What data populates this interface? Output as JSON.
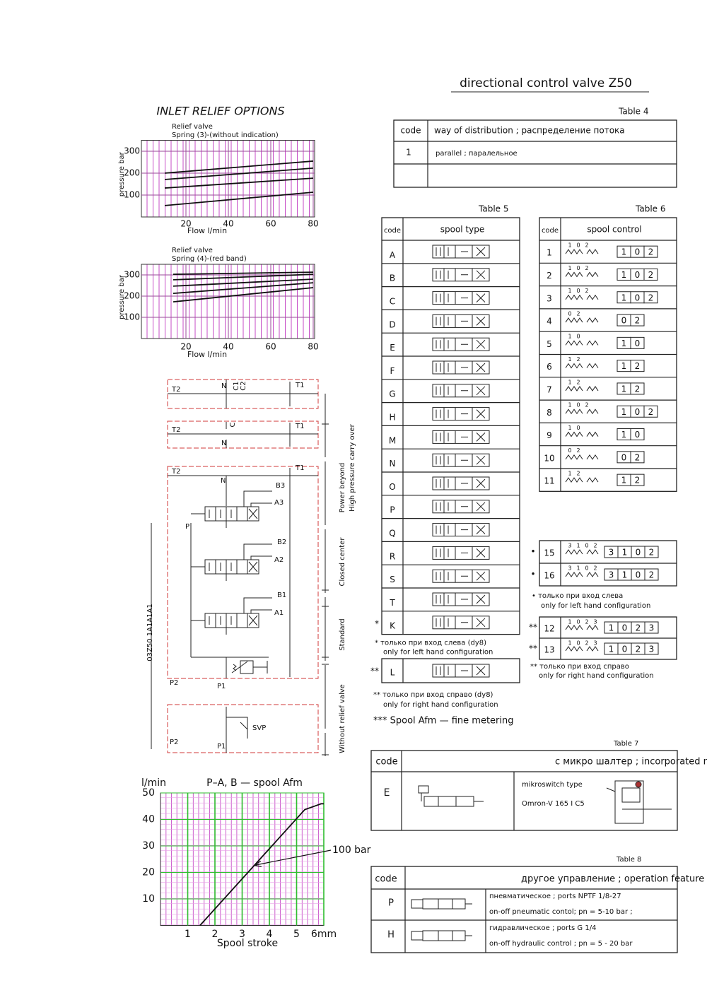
{
  "header": {
    "title": "directional control valve Z50"
  },
  "inlet_relief_title": "INLET RELIEF OPTIONS",
  "chart_data": [
    {
      "type": "line",
      "title": "Relief valve",
      "subtitle": "Spring (3)-(without indication)",
      "x_label": "Flow l/min",
      "y_label": "pressure bar",
      "xlim": [
        0,
        80
      ],
      "ylim": [
        0,
        350
      ],
      "xticks": [
        20,
        40,
        60,
        80
      ],
      "yticks": [
        100,
        200,
        300
      ],
      "x": [
        10,
        80
      ],
      "color": "#111111",
      "grid_color": "#9a4a9a",
      "series": [
        {
          "values": [
            200,
            255
          ]
        },
        {
          "values": [
            171,
            223
          ]
        },
        {
          "values": [
            132,
            177
          ]
        },
        {
          "values": [
            52,
            113
          ]
        }
      ]
    },
    {
      "type": "line",
      "title": "Relief valve",
      "subtitle": "Spring (4)-(red band)",
      "x_label": "Flow l/min",
      "y_label": "pressure bar",
      "xlim": [
        0,
        80
      ],
      "ylim": [
        0,
        350
      ],
      "xticks": [
        20,
        40,
        60,
        80
      ],
      "yticks": [
        100,
        200,
        300
      ],
      "x": [
        14,
        80
      ],
      "color": "#111111",
      "grid_color": "#9a4a9a",
      "series": [
        {
          "values": [
            303,
            313
          ]
        },
        {
          "values": [
            277,
            303
          ]
        },
        {
          "values": [
            247,
            280
          ]
        },
        {
          "values": [
            213,
            263
          ]
        },
        {
          "values": [
            173,
            240
          ]
        }
      ]
    },
    {
      "type": "line",
      "title": "P–A, B — spool Afm",
      "x_label": "Spool stroke",
      "y_label": "l/min",
      "xlim": [
        0,
        6
      ],
      "ylim": [
        0,
        50
      ],
      "xticks": [
        1,
        2,
        3,
        4,
        5,
        {
          "value": 6,
          "label": "6mm"
        }
      ],
      "yticks": [
        10,
        20,
        30,
        40,
        50
      ],
      "x": [
        1.45,
        5.3,
        5.9,
        6
      ],
      "color": "#111111",
      "grid_color": "#2fbf2f",
      "series": [
        {
          "values": [
            0,
            43.7,
            45.9,
            45.9
          ]
        }
      ],
      "annotation": "100 bar"
    }
  ],
  "circuit": {
    "model": "03Z50 1A1A1A1",
    "labels": [
      "T2",
      "N",
      "C1",
      "C2",
      "T1",
      "T2",
      "C",
      "N",
      "T1",
      "T2",
      "T1",
      "N",
      "B3",
      "A3",
      "P",
      "B2",
      "A2",
      "B1",
      "A1",
      "P2",
      "P1",
      "P2",
      "P1",
      "SVP"
    ],
    "sections": [
      "Power beyond",
      "High pressure carry over",
      "Closed center",
      "Standard",
      "Without relief valve"
    ]
  },
  "table4": {
    "caption": "Table 4",
    "header": [
      "code",
      "way of distribution ; распределение потока"
    ],
    "rows": [
      [
        "1",
        "parallel ; паралельное"
      ]
    ]
  },
  "table5": {
    "caption": "Table 5",
    "header": [
      "code",
      "spool type"
    ],
    "rows": [
      {
        "code": "A"
      },
      {
        "code": "B"
      },
      {
        "code": "C"
      },
      {
        "code": "D"
      },
      {
        "code": "E"
      },
      {
        "code": "F"
      },
      {
        "code": "G"
      },
      {
        "code": "H"
      },
      {
        "code": "M"
      },
      {
        "code": "N"
      },
      {
        "code": "O"
      },
      {
        "code": "P"
      },
      {
        "code": "Q"
      },
      {
        "code": "R"
      },
      {
        "code": "S"
      },
      {
        "code": "T"
      },
      {
        "code": "K",
        "marker": "*"
      }
    ],
    "note1": [
      "* только при вход слева (dy8)",
      "only for left hand configuration"
    ],
    "extra_row": {
      "code": "L",
      "marker": "**"
    },
    "note2": [
      "** только при вход справо (dy8)",
      "only for right hand configuration"
    ],
    "note3": "*** Spool Afm — fine metering"
  },
  "table6": {
    "caption": "Table 6",
    "header": [
      "code",
      "spool control"
    ],
    "rows": [
      {
        "code": "1",
        "positions": [
          "1",
          "0",
          "2"
        ]
      },
      {
        "code": "2",
        "positions": [
          "1",
          "0",
          "2"
        ]
      },
      {
        "code": "3",
        "positions": [
          "1",
          "0",
          "2"
        ]
      },
      {
        "code": "4",
        "positions": [
          "0",
          "2"
        ]
      },
      {
        "code": "5",
        "positions": [
          "1",
          "0"
        ]
      },
      {
        "code": "6",
        "positions": [
          "1",
          "2"
        ]
      },
      {
        "code": "7",
        "positions": [
          "1",
          "2"
        ]
      },
      {
        "code": "8",
        "positions": [
          "1",
          "0",
          "2"
        ]
      },
      {
        "code": "9",
        "positions": [
          "1",
          "0"
        ]
      },
      {
        "code": "10",
        "positions": [
          "0",
          "2"
        ]
      },
      {
        "code": "11",
        "positions": [
          "1",
          "2"
        ]
      }
    ],
    "group1": [
      {
        "code": "15",
        "marker": "•",
        "positions": [
          "3",
          "1",
          "0",
          "2"
        ]
      },
      {
        "code": "16",
        "marker": "•",
        "positions": [
          "3",
          "1",
          "0",
          "2"
        ]
      }
    ],
    "note1": [
      "• только при вход слева",
      "only for left hand configuration"
    ],
    "group2": [
      {
        "code": "12",
        "marker": "**",
        "positions": [
          "1",
          "0",
          "2",
          "3"
        ]
      },
      {
        "code": "13",
        "marker": "**",
        "positions": [
          "1",
          "0",
          "2",
          "3"
        ]
      }
    ],
    "note2": [
      "** только при вход справо",
      "only for right hand configuration"
    ]
  },
  "table7": {
    "caption": "Table 7",
    "header": [
      "code",
      "с микро шалтер ; incorporated microswitch"
    ],
    "rows": [
      {
        "code": "E",
        "type_label": "mikroswitch type",
        "type": "Omron-V 165 I C5"
      }
    ]
  },
  "table8": {
    "caption": "Table 8",
    "header": [
      "code",
      "другое управление ; operation feature"
    ],
    "rows": [
      {
        "code": "P",
        "lines": [
          "пневматическое ; ports NPTF 1/8-27",
          "on-off pneumatic contol; pn = 5-10 bar ;"
        ]
      },
      {
        "code": "H",
        "lines": [
          "гидравлическое ; ports G 1/4",
          "on-off hydraulic control ; pn = 5 - 20 bar"
        ]
      }
    ]
  }
}
